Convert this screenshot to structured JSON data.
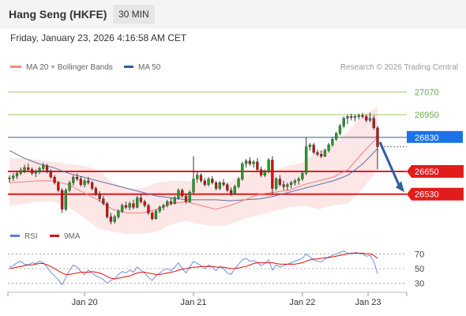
{
  "header": {
    "title": "Hang Seng (HKFE)",
    "interval": "30 MIN"
  },
  "datetime": "Friday, January 23, 2026 4:16:58 AM CET",
  "legend": {
    "items": [
      {
        "label": "MA 20 + Bollinger Bands",
        "color": "#f28b82"
      },
      {
        "label": "MA 50",
        "color": "#2f5f9e"
      }
    ],
    "credit": "Research © 2026 Trading Central"
  },
  "rsi_legend": {
    "items": [
      {
        "label": "RSI",
        "color": "#5b7fd6"
      },
      {
        "label": "9MA",
        "color": "#dd1111"
      }
    ]
  },
  "colors": {
    "up": "#22a022",
    "down": "#cc1111",
    "resistance_line": "#9ccc65",
    "support_line": "#e31b1b",
    "current_line": "#2f5f9e",
    "current_label": "#1a73e8",
    "bollinger_fill": "#fde2e2",
    "arrow": "#2f5f9e"
  },
  "chart_data": {
    "type": "candlestick",
    "instrument": "Hang Seng (HKFE)",
    "interval": "30 MIN",
    "x_tick_labels": [
      "Jan 20",
      "Jan 21",
      "Jan 22",
      "Jan 23"
    ],
    "y_range": [
      26345,
      27180
    ],
    "price_levels": [
      {
        "value": 27070,
        "label": "27070",
        "kind": "resistance"
      },
      {
        "value": 26950,
        "label": "26950",
        "kind": "resistance"
      },
      {
        "value": 26830,
        "label": "26830",
        "kind": "current"
      },
      {
        "value": 26650,
        "label": "26650",
        "kind": "support"
      },
      {
        "value": 26530,
        "label": "26530",
        "kind": "support"
      }
    ],
    "current_price": 26830,
    "ohlc": [
      [
        26610,
        26630,
        26590,
        26615
      ],
      [
        26615,
        26640,
        26600,
        26625
      ],
      [
        26625,
        26650,
        26610,
        26640
      ],
      [
        26640,
        26670,
        26630,
        26655
      ],
      [
        26655,
        26685,
        26640,
        26670
      ],
      [
        26670,
        26690,
        26650,
        26660
      ],
      [
        26660,
        26670,
        26630,
        26640
      ],
      [
        26640,
        26660,
        26620,
        26650
      ],
      [
        26650,
        26675,
        26635,
        26665
      ],
      [
        26665,
        26695,
        26650,
        26680
      ],
      [
        26680,
        26690,
        26640,
        26650
      ],
      [
        26650,
        26660,
        26610,
        26620
      ],
      [
        26620,
        26630,
        26580,
        26590
      ],
      [
        26590,
        26600,
        26540,
        26550
      ],
      [
        26550,
        26560,
        26430,
        26450
      ],
      [
        26450,
        26560,
        26440,
        26550
      ],
      [
        26550,
        26600,
        26540,
        26590
      ],
      [
        26590,
        26630,
        26575,
        26620
      ],
      [
        26620,
        26640,
        26600,
        26610
      ],
      [
        26610,
        26625,
        26570,
        26580
      ],
      [
        26580,
        26610,
        26565,
        26600
      ],
      [
        26600,
        26620,
        26580,
        26590
      ],
      [
        26590,
        26600,
        26550,
        26560
      ],
      [
        26560,
        26570,
        26520,
        26530
      ],
      [
        26530,
        26545,
        26490,
        26505
      ],
      [
        26505,
        26520,
        26470,
        26480
      ],
      [
        26480,
        26490,
        26400,
        26410
      ],
      [
        26410,
        26430,
        26370,
        26385
      ],
      [
        26385,
        26420,
        26375,
        26410
      ],
      [
        26410,
        26450,
        26400,
        26440
      ],
      [
        26440,
        26480,
        26430,
        26470
      ],
      [
        26470,
        26490,
        26450,
        26460
      ],
      [
        26460,
        26490,
        26445,
        26480
      ],
      [
        26480,
        26500,
        26450,
        26460
      ],
      [
        26460,
        26520,
        26455,
        26510
      ],
      [
        26510,
        26530,
        26480,
        26490
      ],
      [
        26490,
        26500,
        26460,
        26470
      ],
      [
        26470,
        26480,
        26420,
        26430
      ],
      [
        26430,
        26440,
        26390,
        26400
      ],
      [
        26400,
        26450,
        26395,
        26440
      ],
      [
        26440,
        26470,
        26430,
        26460
      ],
      [
        26460,
        26480,
        26445,
        26470
      ],
      [
        26470,
        26500,
        26460,
        26490
      ],
      [
        26490,
        26510,
        26470,
        26480
      ],
      [
        26480,
        26520,
        26475,
        26510
      ],
      [
        26510,
        26560,
        26500,
        26550
      ],
      [
        26550,
        26560,
        26510,
        26520
      ],
      [
        26520,
        26530,
        26480,
        26490
      ],
      [
        26490,
        26550,
        26485,
        26540
      ],
      [
        26540,
        26730,
        26530,
        26610
      ],
      [
        26610,
        26650,
        26590,
        26630
      ],
      [
        26630,
        26640,
        26590,
        26600
      ],
      [
        26600,
        26615,
        26570,
        26580
      ],
      [
        26580,
        26620,
        26570,
        26610
      ],
      [
        26610,
        26625,
        26580,
        26590
      ],
      [
        26590,
        26600,
        26550,
        26560
      ],
      [
        26560,
        26600,
        26550,
        26590
      ],
      [
        26590,
        26610,
        26570,
        26580
      ],
      [
        26580,
        26590,
        26540,
        26550
      ],
      [
        26550,
        26565,
        26520,
        26530
      ],
      [
        26530,
        26580,
        26525,
        26570
      ],
      [
        26570,
        26620,
        26560,
        26610
      ],
      [
        26610,
        26700,
        26600,
        26690
      ],
      [
        26690,
        26715,
        26670,
        26705
      ],
      [
        26705,
        26725,
        26680,
        26690
      ],
      [
        26690,
        26710,
        26670,
        26700
      ],
      [
        26700,
        26720,
        26650,
        26660
      ],
      [
        26660,
        26675,
        26620,
        26630
      ],
      [
        26630,
        26660,
        26620,
        26650
      ],
      [
        26650,
        26720,
        26640,
        26710
      ],
      [
        26710,
        26730,
        26530,
        26560
      ],
      [
        26560,
        26620,
        26550,
        26610
      ],
      [
        26610,
        26630,
        26570,
        26580
      ],
      [
        26580,
        26600,
        26550,
        26570
      ],
      [
        26570,
        26590,
        26550,
        26580
      ],
      [
        26580,
        26600,
        26560,
        26590
      ],
      [
        26590,
        26610,
        26575,
        26600
      ],
      [
        26600,
        26620,
        26580,
        26610
      ],
      [
        26610,
        26650,
        26600,
        26640
      ],
      [
        26640,
        26830,
        26630,
        26780
      ],
      [
        26780,
        26800,
        26760,
        26790
      ],
      [
        26790,
        26800,
        26740,
        26750
      ],
      [
        26750,
        26765,
        26730,
        26740
      ],
      [
        26740,
        26760,
        26720,
        26730
      ],
      [
        26730,
        26770,
        26725,
        26760
      ],
      [
        26760,
        26800,
        26750,
        26790
      ],
      [
        26790,
        26830,
        26780,
        26820
      ],
      [
        26820,
        26860,
        26810,
        26850
      ],
      [
        26850,
        26900,
        26840,
        26890
      ],
      [
        26890,
        26940,
        26880,
        26930
      ],
      [
        26930,
        26950,
        26900,
        26940
      ],
      [
        26940,
        26955,
        26920,
        26935
      ],
      [
        26935,
        26950,
        26915,
        26940
      ],
      [
        26940,
        26955,
        26925,
        26945
      ],
      [
        26945,
        26960,
        26930,
        26940
      ],
      [
        26940,
        26950,
        26910,
        26920
      ],
      [
        26920,
        26960,
        26910,
        26930
      ],
      [
        26930,
        26945,
        26870,
        26880
      ],
      [
        26880,
        26890,
        26660,
        26780
      ]
    ],
    "bollinger": {
      "mid": [
        26590,
        26595,
        26600,
        26600,
        26580,
        26540,
        26500,
        26450,
        26430,
        26430,
        26450,
        26480,
        26490,
        26470,
        26450,
        26470,
        26500,
        26530,
        26540,
        26550,
        26580,
        26600,
        26620,
        26660,
        26750,
        26830
      ],
      "upper": [
        26720,
        26720,
        26710,
        26700,
        26690,
        26680,
        26660,
        26590,
        26560,
        26560,
        26590,
        26600,
        26600,
        26590,
        26560,
        26600,
        26630,
        26660,
        26660,
        26680,
        26700,
        26760,
        26790,
        26860,
        26950,
        26990
      ],
      "lower": [
        26470,
        26480,
        26490,
        26490,
        26460,
        26410,
        26350,
        26330,
        26320,
        26320,
        26330,
        26370,
        26390,
        26370,
        26360,
        26370,
        26400,
        26420,
        26440,
        26460,
        26470,
        26450,
        26470,
        26480,
        26560,
        26660
      ]
    },
    "ma50": [
      26760,
      26720,
      26690,
      26670,
      26640,
      26620,
      26600,
      26580,
      26560,
      26540,
      26520,
      26510,
      26500,
      26500,
      26500,
      26495,
      26500,
      26505,
      26520,
      26540,
      26560,
      26580,
      26600,
      26630,
      26690,
      26770
    ],
    "rsi": {
      "y_ticks": [
        70,
        50,
        30
      ],
      "y_range": [
        22,
        78
      ],
      "rsi": [
        52,
        54,
        58,
        60,
        56,
        55,
        58,
        57,
        60,
        58,
        52,
        45,
        40,
        35,
        28,
        38,
        48,
        55,
        52,
        46,
        42,
        48,
        44,
        40,
        38,
        35,
        30,
        34,
        36,
        42,
        46,
        44,
        48,
        45,
        52,
        48,
        44,
        38,
        34,
        40,
        44,
        48,
        50,
        47,
        52,
        58,
        50,
        44,
        52,
        60,
        57,
        54,
        50,
        55,
        52,
        47,
        53,
        50,
        44,
        42,
        50,
        56,
        62,
        64,
        60,
        61,
        58,
        54,
        57,
        62,
        48,
        55,
        52,
        54,
        56,
        58,
        60,
        62,
        64,
        70,
        66,
        62,
        60,
        59,
        63,
        66,
        68,
        70,
        72,
        74,
        71,
        70,
        72,
        71,
        70,
        67,
        68,
        60,
        43
      ],
      "ma9": [
        50,
        51,
        52,
        53,
        54,
        55,
        55,
        56,
        57,
        57,
        55,
        53,
        50,
        47,
        44,
        42,
        42,
        43,
        44,
        45,
        45,
        45,
        46,
        45,
        44,
        42,
        39,
        37,
        36,
        37,
        38,
        39,
        40,
        42,
        44,
        45,
        45,
        44,
        43,
        42,
        42,
        43,
        44,
        45,
        46,
        48,
        49,
        50,
        51,
        52,
        52,
        53,
        53,
        53,
        53,
        52,
        52,
        52,
        51,
        50,
        50,
        51,
        52,
        53,
        55,
        57,
        58,
        58,
        58,
        58,
        58,
        57,
        56,
        56,
        56,
        56,
        56,
        57,
        58,
        60,
        62,
        63,
        63,
        64,
        65,
        65,
        66,
        67,
        68,
        69,
        70,
        71,
        71,
        71,
        71,
        70,
        70,
        68,
        64
      ]
    }
  }
}
